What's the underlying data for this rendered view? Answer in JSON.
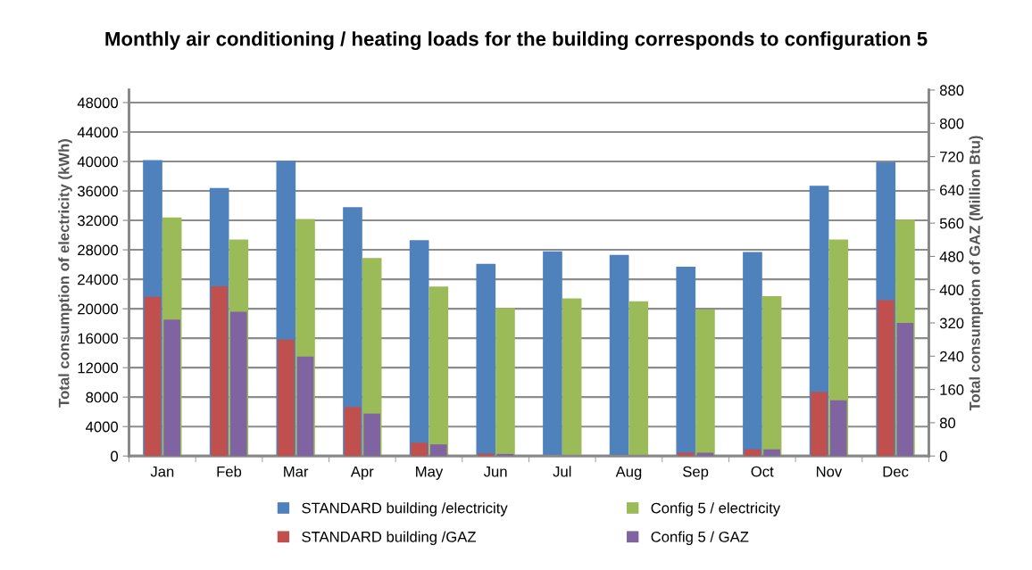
{
  "chart_data": {
    "type": "bar",
    "title": "Monthly air conditioning / heating loads for the building corresponds to configuration 5",
    "ylabel": "Total consumption of electricity (kWh)",
    "y2label": "Total consumption of GAZ (Million Btu)",
    "categories": [
      "Jan",
      "Feb",
      "Mar",
      "Apr",
      "May",
      "Jun",
      "Jul",
      "Aug",
      "Sep",
      "Oct",
      "Nov",
      "Dec"
    ],
    "series": [
      {
        "name": "STANDARD building /electricity",
        "color": "#4f81bd",
        "values": [
          40200,
          36400,
          40100,
          33800,
          29300,
          26100,
          27800,
          27300,
          25700,
          27700,
          36700,
          39900
        ]
      },
      {
        "name": "STANDARD building /GAZ",
        "color": "#c0504d",
        "axis": "y2",
        "values": [
          383,
          408,
          280,
          118,
          32,
          6,
          0,
          0,
          8,
          16,
          154,
          375
        ]
      },
      {
        "name": "Config 5 / electricity",
        "color": "#9bbb59",
        "values": [
          32400,
          29400,
          32200,
          26900,
          23000,
          20100,
          21400,
          21000,
          19900,
          21700,
          29400,
          32100
        ]
      },
      {
        "name": "Config 5 / GAZ",
        "color": "#8064a2",
        "axis": "y2",
        "values": [
          328,
          347,
          239,
          102,
          28,
          5,
          0,
          0,
          8,
          16,
          134,
          320
        ]
      }
    ],
    "ylim": [
      0,
      49700
    ],
    "yticks": [
      0,
      4000,
      8000,
      12000,
      16000,
      20000,
      24000,
      28000,
      32000,
      36000,
      40000,
      44000,
      48000
    ],
    "y2lim": [
      0,
      880
    ],
    "y2ticks": [
      0,
      80,
      160,
      240,
      320,
      400,
      480,
      560,
      640,
      720,
      800,
      880
    ],
    "grid": "y",
    "legend": "bottom"
  }
}
